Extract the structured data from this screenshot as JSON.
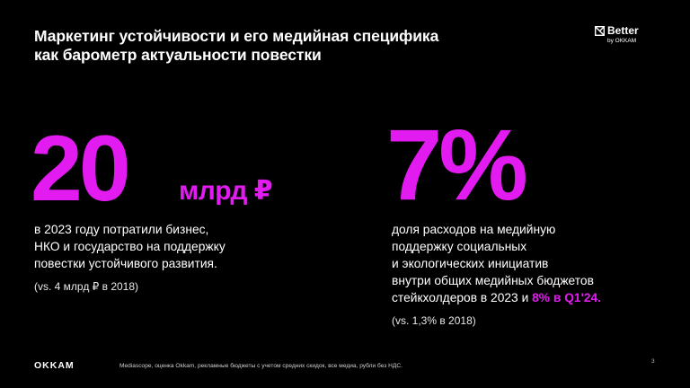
{
  "header": {
    "title_line1": "Маркетинг устойчивости и его медийная специфика",
    "title_line2": "как барометр актуальности повестки"
  },
  "brand": {
    "name": "Better",
    "sub": "by OKKAM",
    "icon": "box-x-icon"
  },
  "left_stat": {
    "value": "20",
    "unit": "млрд ₽",
    "desc_line1": "в 2023 году потратили бизнес,",
    "desc_line2": "НКО и государство на поддержку",
    "desc_line3": "повестки устойчивого развития.",
    "note": "(vs. 4 млрд ₽ в 2018)"
  },
  "right_stat": {
    "value": "7%",
    "desc_line1": "доля расходов на медийную",
    "desc_line2": "поддержку социальных",
    "desc_line3": "и экологических инициатив",
    "desc_line4": "внутри общих медийных бюджетов",
    "desc_line5_prefix": "стейкхолдеров в 2023 и ",
    "desc_line5_accent": "8% в Q1'24.",
    "note": "(vs. 1,3% в 2018)"
  },
  "footer": {
    "logo": "OKKAM",
    "source": "Mediascope, оценка Okkam, рекламные бюджеты с учетом средних скидок, все медиа, рубли без НДС.",
    "page": "3"
  },
  "colors": {
    "accent": "#e21cf0",
    "background": "#000000",
    "text": "#ffffff"
  }
}
